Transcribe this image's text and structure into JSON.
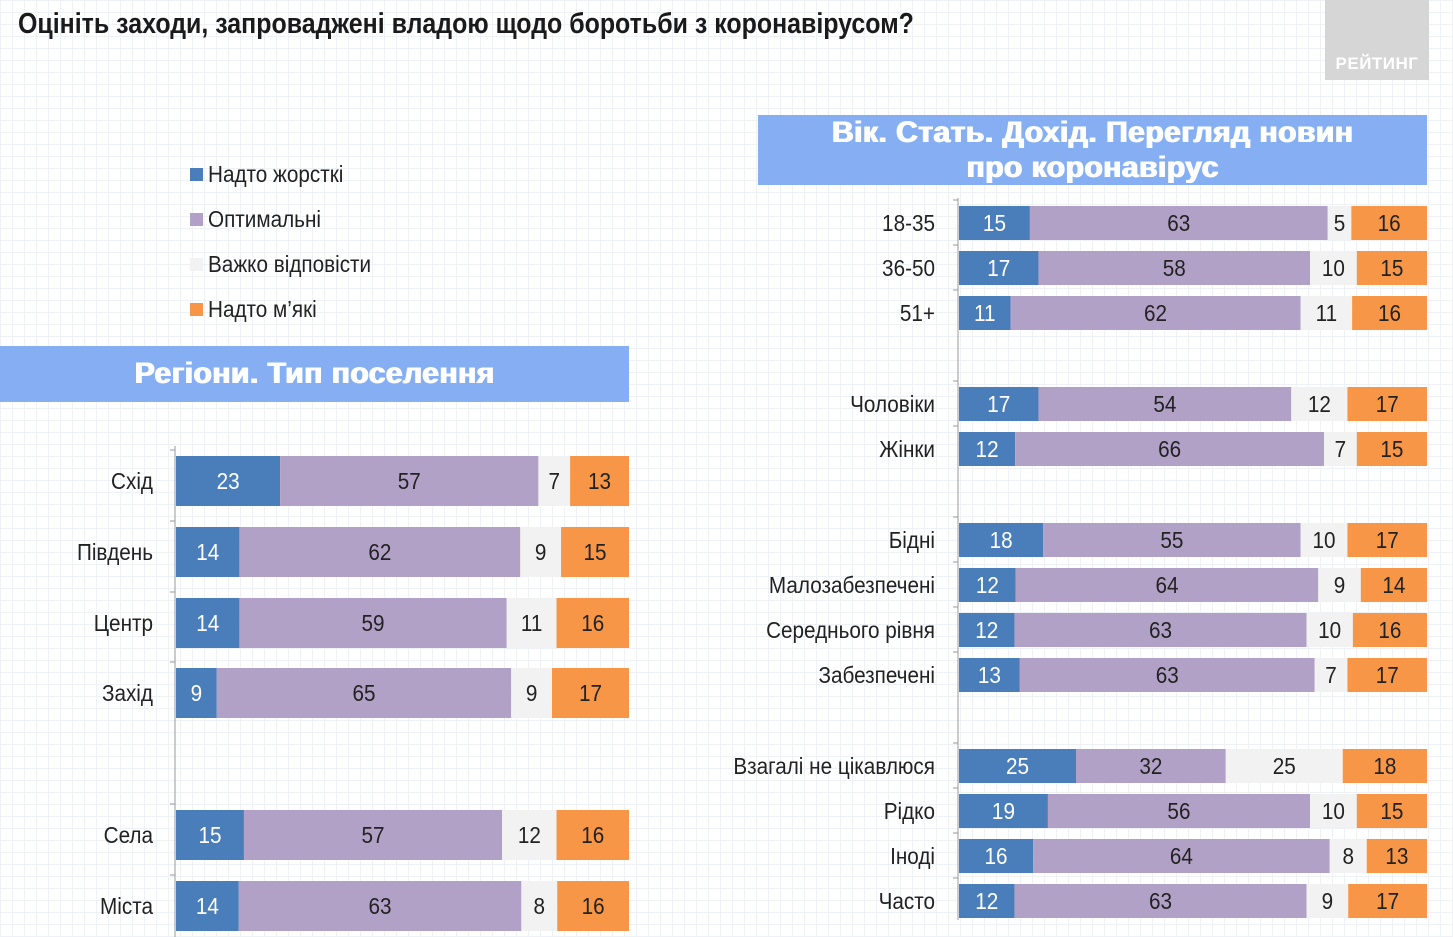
{
  "header": {
    "title": "Оцініть заходи, запроваджені владою щодо боротьби з коронавірусом?",
    "logo_text": "РЕЙТИНГ"
  },
  "legend": [
    {
      "label": "Надто жорсткі",
      "color": "#4a7ebb"
    },
    {
      "label": "Оптимальні",
      "color": "#b2a1c7"
    },
    {
      "label": "Важко відповісти",
      "color": "#f2f2f2"
    },
    {
      "label": "Надто м’які",
      "color": "#f79646"
    }
  ],
  "banners": {
    "left": "Регіони. Тип поселення",
    "right_line1": "Вік. Стать. Дохід. Перегляд новин",
    "right_line2": "про коронавірус"
  },
  "chart_data": [
    {
      "type": "bar",
      "stacked": true,
      "orientation": "horizontal",
      "title": "Регіони. Тип поселення",
      "series_names": [
        "Надто жорсткі",
        "Оптимальні",
        "Важко відповісти",
        "Надто м’які"
      ],
      "colors": [
        "#4a7ebb",
        "#b2a1c7",
        "#f2f2f2",
        "#f79646"
      ],
      "rows": [
        {
          "label": "Схід",
          "values": [
            23,
            57,
            7,
            13
          ]
        },
        {
          "label": "Південь",
          "values": [
            14,
            62,
            9,
            15
          ]
        },
        {
          "label": "Центр",
          "values": [
            14,
            59,
            11,
            16
          ]
        },
        {
          "label": "Захід",
          "values": [
            9,
            65,
            9,
            17
          ]
        },
        {
          "label": "Села",
          "values": [
            15,
            57,
            12,
            16
          ]
        },
        {
          "label": "Міста",
          "values": [
            14,
            63,
            8,
            16
          ]
        }
      ]
    },
    {
      "type": "bar",
      "stacked": true,
      "orientation": "horizontal",
      "title": "Вік. Стать. Дохід. Перегляд новин про коронавірус",
      "series_names": [
        "Надто жорсткі",
        "Оптимальні",
        "Важко відповісти",
        "Надто м’які"
      ],
      "colors": [
        "#4a7ebb",
        "#b2a1c7",
        "#f2f2f2",
        "#f79646"
      ],
      "rows": [
        {
          "label": "18-35",
          "values": [
            15,
            63,
            5,
            16
          ]
        },
        {
          "label": "36-50",
          "values": [
            17,
            58,
            10,
            15
          ]
        },
        {
          "label": "51+",
          "values": [
            11,
            62,
            11,
            16
          ]
        },
        {
          "label": "Чоловіки",
          "values": [
            17,
            54,
            12,
            17
          ]
        },
        {
          "label": "Жінки",
          "values": [
            12,
            66,
            7,
            15
          ]
        },
        {
          "label": "Бідні",
          "values": [
            18,
            55,
            10,
            17
          ]
        },
        {
          "label": "Малозабезпечені",
          "values": [
            12,
            64,
            9,
            14
          ]
        },
        {
          "label": "Середнього рівня",
          "values": [
            12,
            63,
            10,
            16
          ]
        },
        {
          "label": "Забезпечені",
          "values": [
            13,
            63,
            7,
            17
          ]
        },
        {
          "label": "Взагалі не цікавлюся",
          "values": [
            25,
            32,
            25,
            18
          ]
        },
        {
          "label": "Рідко",
          "values": [
            19,
            56,
            10,
            15
          ]
        },
        {
          "label": "Іноді",
          "values": [
            16,
            64,
            8,
            13
          ]
        },
        {
          "label": "Часто",
          "values": [
            12,
            63,
            9,
            17
          ]
        }
      ]
    }
  ]
}
